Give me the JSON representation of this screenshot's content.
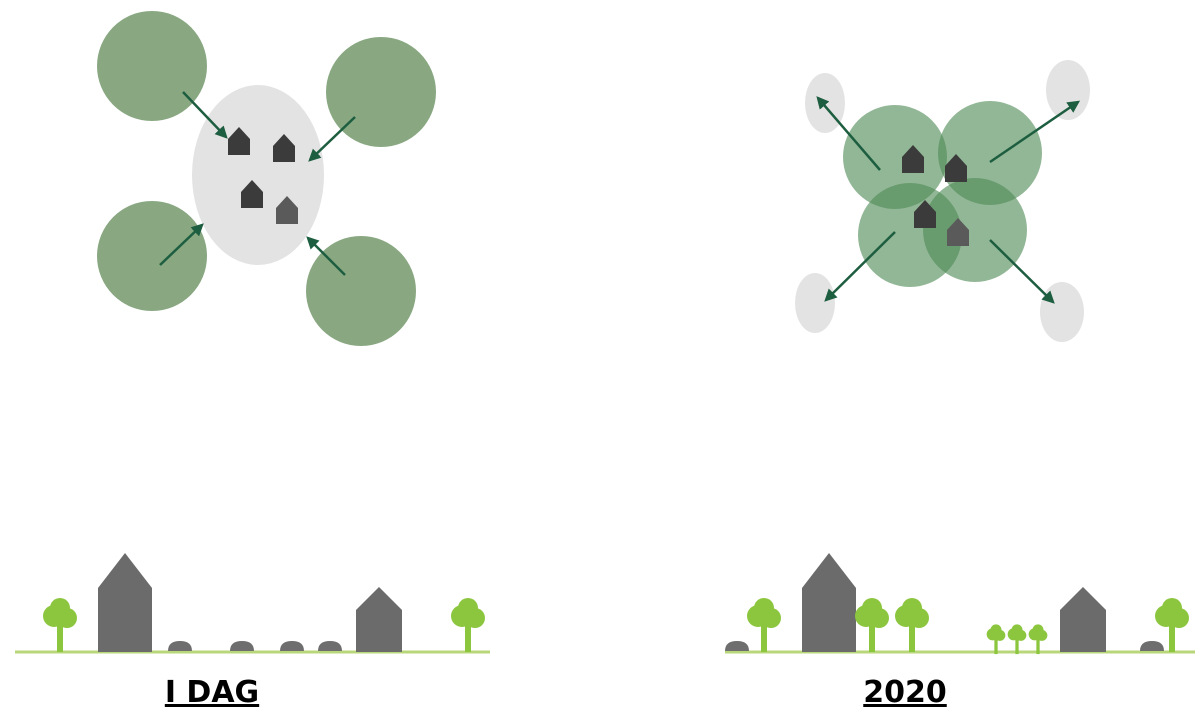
{
  "panels": [
    {
      "label": "I DAG"
    },
    {
      "label": "2020"
    }
  ]
}
